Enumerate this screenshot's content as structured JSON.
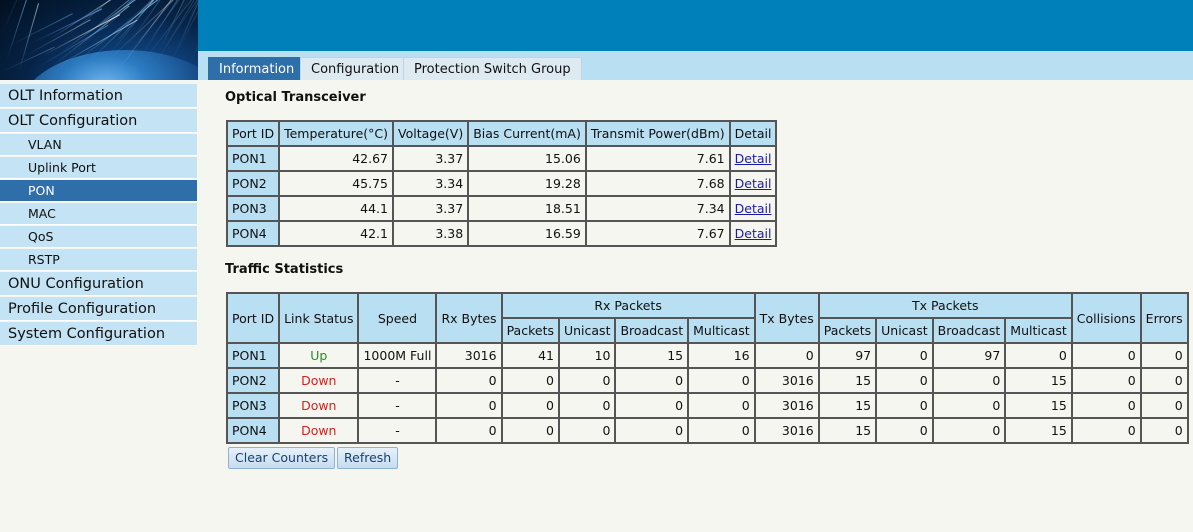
{
  "tabs": [
    {
      "label": "Information"
    },
    {
      "label": "Configuration"
    },
    {
      "label": "Protection Switch Group"
    }
  ],
  "sidebar": {
    "items": [
      {
        "label": "OLT Information",
        "level": "top"
      },
      {
        "label": "OLT Configuration",
        "level": "top"
      },
      {
        "label": "VLAN",
        "level": "sub"
      },
      {
        "label": "Uplink Port",
        "level": "sub"
      },
      {
        "label": "PON",
        "level": "sub",
        "active": true
      },
      {
        "label": "MAC",
        "level": "sub"
      },
      {
        "label": "QoS",
        "level": "sub"
      },
      {
        "label": "RSTP",
        "level": "sub"
      },
      {
        "label": "ONU Configuration",
        "level": "top"
      },
      {
        "label": "Profile Configuration",
        "level": "top"
      },
      {
        "label": "System Configuration",
        "level": "top"
      }
    ]
  },
  "optical": {
    "title": "Optical Transceiver",
    "headers": [
      "Port ID",
      "Temperature(°C)",
      "Voltage(V)",
      "Bias Current(mA)",
      "Transmit Power(dBm)",
      "Detail"
    ],
    "rows": [
      {
        "port": "PON1",
        "temp": "42.67",
        "voltage": "3.37",
        "bias": "15.06",
        "power": "7.61",
        "detail": "Detail"
      },
      {
        "port": "PON2",
        "temp": "45.75",
        "voltage": "3.34",
        "bias": "19.28",
        "power": "7.68",
        "detail": "Detail"
      },
      {
        "port": "PON3",
        "temp": "44.1",
        "voltage": "3.37",
        "bias": "18.51",
        "power": "7.34",
        "detail": "Detail"
      },
      {
        "port": "PON4",
        "temp": "42.1",
        "voltage": "3.38",
        "bias": "16.59",
        "power": "7.67",
        "detail": "Detail"
      }
    ]
  },
  "traffic": {
    "title": "Traffic Statistics",
    "headers": {
      "port": "Port ID",
      "link": "Link Status",
      "speed": "Speed",
      "rx_bytes": "Rx Bytes",
      "rx_packets": "Rx Packets",
      "tx_bytes": "Tx Bytes",
      "tx_packets": "Tx Packets",
      "collisions": "Collisions",
      "errors": "Errors",
      "sub": [
        "Packets",
        "Unicast",
        "Broadcast",
        "Multicast"
      ]
    },
    "rows": [
      {
        "port": "PON1",
        "link": "Up",
        "speed": "1000M Full",
        "rx_bytes": "3016",
        "rx_pk": "41",
        "rx_uc": "10",
        "rx_bc": "15",
        "rx_mc": "16",
        "tx_bytes": "0",
        "tx_pk": "97",
        "tx_uc": "0",
        "tx_bc": "97",
        "tx_mc": "0",
        "collisions": "0",
        "errors": "0"
      },
      {
        "port": "PON2",
        "link": "Down",
        "speed": "-",
        "rx_bytes": "0",
        "rx_pk": "0",
        "rx_uc": "0",
        "rx_bc": "0",
        "rx_mc": "0",
        "tx_bytes": "3016",
        "tx_pk": "15",
        "tx_uc": "0",
        "tx_bc": "0",
        "tx_mc": "15",
        "collisions": "0",
        "errors": "0"
      },
      {
        "port": "PON3",
        "link": "Down",
        "speed": "-",
        "rx_bytes": "0",
        "rx_pk": "0",
        "rx_uc": "0",
        "rx_bc": "0",
        "rx_mc": "0",
        "tx_bytes": "3016",
        "tx_pk": "15",
        "tx_uc": "0",
        "tx_bc": "0",
        "tx_mc": "15",
        "collisions": "0",
        "errors": "0"
      },
      {
        "port": "PON4",
        "link": "Down",
        "speed": "-",
        "rx_bytes": "0",
        "rx_pk": "0",
        "rx_uc": "0",
        "rx_bc": "0",
        "rx_mc": "0",
        "tx_bytes": "3016",
        "tx_pk": "15",
        "tx_uc": "0",
        "tx_bc": "0",
        "tx_mc": "15",
        "collisions": "0",
        "errors": "0"
      }
    ]
  },
  "buttons": {
    "clear": "Clear Counters",
    "refresh": "Refresh"
  },
  "colors": {
    "banner": "#0080bb",
    "accent": "#2f6fa9",
    "header_bg": "#b9dff2",
    "up": "#2a8a2a",
    "down": "#d81e1e"
  }
}
